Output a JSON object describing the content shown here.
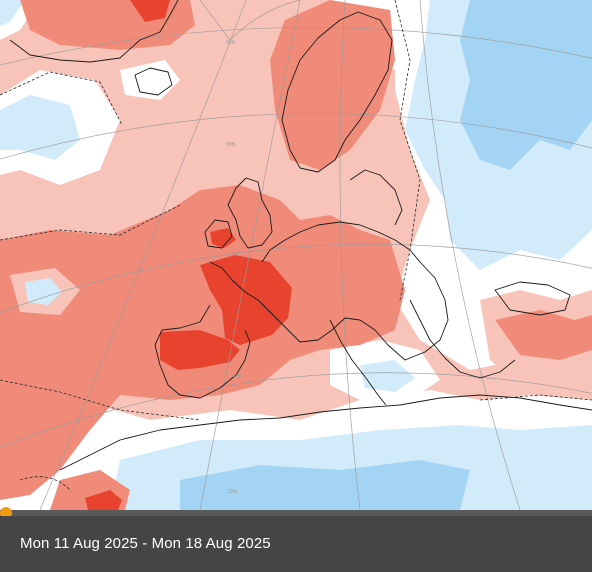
{
  "caption": "Mon 11 Aug 2025 - Mon 18 Aug 2025",
  "timeline": {
    "progress": 0.0
  },
  "colors": {
    "caption_bg": "#454545",
    "timeline_bg": "#5a5a5a",
    "timeline_accent": "#f39c12",
    "much_warmer": "#e8432e",
    "warmer": "#f08b7a",
    "slightly_warmer": "#f8c3b8",
    "near_normal": "#ffffff",
    "slightly_cooler": "#d2ebfb",
    "cooler": "#a4d4f3"
  }
}
